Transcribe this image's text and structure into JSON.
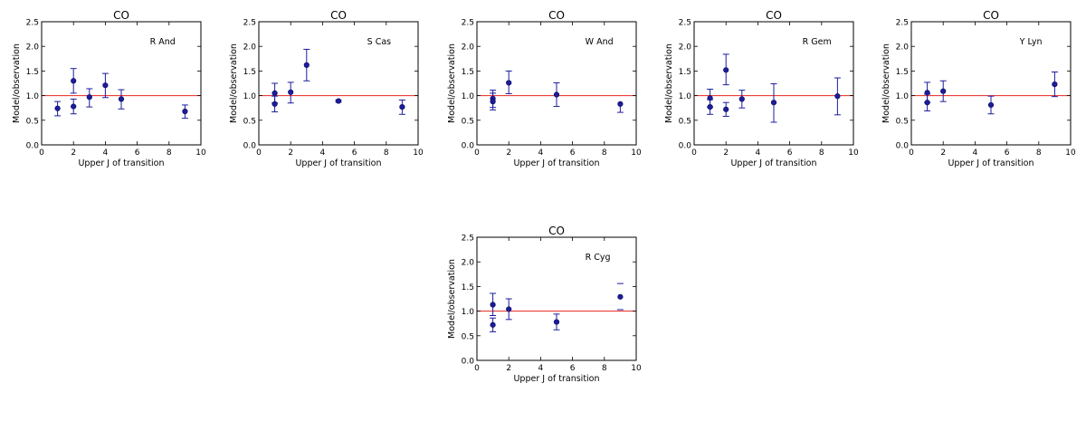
{
  "figure": {
    "colors": {
      "marker": "#1c1c9c",
      "errorbar": "#1c1c9c",
      "reference_line": "#e8261e",
      "axes": "#000000"
    }
  },
  "chart_data": [
    {
      "type": "scatter",
      "title": "CO",
      "star": "R And",
      "xlabel": "Upper J of transition",
      "ylabel": "Model/observation",
      "xlim": [
        0,
        10
      ],
      "ylim": [
        0.0,
        2.5
      ],
      "xticks": [
        "0",
        "2",
        "4",
        "6",
        "8",
        "10"
      ],
      "yticks": [
        "0.0",
        "0.5",
        "1.0",
        "1.5",
        "2.0",
        "2.5"
      ],
      "reference_y": 1.0,
      "points": [
        {
          "x": 1,
          "y": 0.74,
          "err_low": 0.15,
          "err_high": 0.14
        },
        {
          "x": 2,
          "y": 1.3,
          "err_low": 0.25,
          "err_high": 0.25
        },
        {
          "x": 2,
          "y": 0.78,
          "err_low": 0.15,
          "err_high": 0.15
        },
        {
          "x": 3,
          "y": 0.97,
          "err_low": 0.2,
          "err_high": 0.17
        },
        {
          "x": 4,
          "y": 1.21,
          "err_low": 0.25,
          "err_high": 0.24
        },
        {
          "x": 5,
          "y": 0.93,
          "err_low": 0.2,
          "err_high": 0.19
        },
        {
          "x": 9,
          "y": 0.68,
          "err_low": 0.14,
          "err_high": 0.13
        }
      ]
    },
    {
      "type": "scatter",
      "title": "CO",
      "star": "S Cas",
      "xlabel": "Upper J of transition",
      "ylabel": "Model/observation",
      "xlim": [
        0,
        10
      ],
      "ylim": [
        0.0,
        2.5
      ],
      "xticks": [
        "0",
        "2",
        "4",
        "6",
        "8",
        "10"
      ],
      "yticks": [
        "0.0",
        "0.5",
        "1.0",
        "1.5",
        "2.0",
        "2.5"
      ],
      "reference_y": 1.0,
      "points": [
        {
          "x": 1,
          "y": 1.05,
          "err_low": 0.2,
          "err_high": 0.2
        },
        {
          "x": 1,
          "y": 0.83,
          "err_low": 0.16,
          "err_high": 0.16
        },
        {
          "x": 2,
          "y": 1.07,
          "err_low": 0.22,
          "err_high": 0.2
        },
        {
          "x": 3,
          "y": 1.62,
          "err_low": 0.32,
          "err_high": 0.32
        },
        {
          "x": 5,
          "y": 0.89,
          "err_low": 0.02,
          "err_high": 0.02
        },
        {
          "x": 9,
          "y": 0.77,
          "err_low": 0.15,
          "err_high": 0.14
        }
      ]
    },
    {
      "type": "scatter",
      "title": "CO",
      "star": "W And",
      "xlabel": "Upper J of transition",
      "ylabel": "Model/observation",
      "xlim": [
        0,
        10
      ],
      "ylim": [
        0.0,
        2.5
      ],
      "xticks": [
        "0",
        "2",
        "4",
        "6",
        "8",
        "10"
      ],
      "yticks": [
        "0.0",
        "0.5",
        "1.0",
        "1.5",
        "2.0",
        "2.5"
      ],
      "reference_y": 1.0,
      "points": [
        {
          "x": 1,
          "y": 0.94,
          "err_low": 0.18,
          "err_high": 0.17
        },
        {
          "x": 1,
          "y": 0.88,
          "err_low": 0.17,
          "err_high": 0.17
        },
        {
          "x": 2,
          "y": 1.26,
          "err_low": 0.22,
          "err_high": 0.24
        },
        {
          "x": 5,
          "y": 1.02,
          "err_low": 0.24,
          "err_high": 0.24
        },
        {
          "x": 9,
          "y": 0.83,
          "err_low": 0.17,
          "err_high": 0.0
        }
      ]
    },
    {
      "type": "scatter",
      "title": "CO",
      "star": "R Gem",
      "xlabel": "Upper J of transition",
      "ylabel": "Model/observation",
      "xlim": [
        0,
        10
      ],
      "ylim": [
        0.0,
        2.5
      ],
      "xticks": [
        "0",
        "2",
        "4",
        "6",
        "8",
        "10"
      ],
      "yticks": [
        "0.0",
        "0.5",
        "1.0",
        "1.5",
        "2.0",
        "2.5"
      ],
      "reference_y": 1.0,
      "points": [
        {
          "x": 1,
          "y": 0.95,
          "err_low": 0.18,
          "err_high": 0.18
        },
        {
          "x": 1,
          "y": 0.77,
          "err_low": 0.15,
          "err_high": 0.15
        },
        {
          "x": 2,
          "y": 1.52,
          "err_low": 0.3,
          "err_high": 0.32
        },
        {
          "x": 2,
          "y": 0.72,
          "err_low": 0.14,
          "err_high": 0.14
        },
        {
          "x": 3,
          "y": 0.93,
          "err_low": 0.18,
          "err_high": 0.18
        },
        {
          "x": 5,
          "y": 0.86,
          "err_low": 0.4,
          "err_high": 0.38
        },
        {
          "x": 9,
          "y": 0.99,
          "err_low": 0.38,
          "err_high": 0.37
        }
      ]
    },
    {
      "type": "scatter",
      "title": "CO",
      "star": "Y Lyn",
      "xlabel": "Upper J of transition",
      "ylabel": "Model/observation",
      "xlim": [
        0,
        10
      ],
      "ylim": [
        0.0,
        2.5
      ],
      "xticks": [
        "0",
        "2",
        "4",
        "6",
        "8",
        "10"
      ],
      "yticks": [
        "0.0",
        "0.5",
        "1.0",
        "1.5",
        "2.0",
        "2.5"
      ],
      "reference_y": 1.0,
      "points": [
        {
          "x": 1,
          "y": 1.06,
          "err_low": 0.2,
          "err_high": 0.21
        },
        {
          "x": 1,
          "y": 0.86,
          "err_low": 0.17,
          "err_high": 0.17
        },
        {
          "x": 2,
          "y": 1.09,
          "err_low": 0.21,
          "err_high": 0.21
        },
        {
          "x": 5,
          "y": 0.81,
          "err_low": 0.18,
          "err_high": 0.18
        },
        {
          "x": 9,
          "y": 1.23,
          "err_low": 0.25,
          "err_high": 0.25
        }
      ]
    },
    {
      "type": "scatter",
      "title": "CO",
      "star": "R Cyg",
      "xlabel": "Upper J of transition",
      "ylabel": "Model/observation",
      "xlim": [
        0,
        10
      ],
      "ylim": [
        0.0,
        2.5
      ],
      "xticks": [
        "0",
        "2",
        "4",
        "6",
        "8",
        "10"
      ],
      "yticks": [
        "0.0",
        "0.5",
        "1.0",
        "1.5",
        "2.0",
        "2.5"
      ],
      "reference_y": 1.0,
      "points": [
        {
          "x": 1,
          "y": 1.13,
          "err_low": 0.22,
          "err_high": 0.23
        },
        {
          "x": 1,
          "y": 0.72,
          "err_low": 0.14,
          "err_high": 0.14
        },
        {
          "x": 2,
          "y": 1.04,
          "err_low": 0.21,
          "err_high": 0.21
        },
        {
          "x": 5,
          "y": 0.78,
          "err_low": 0.16,
          "err_high": 0.16
        },
        {
          "x": 9,
          "y": 1.29,
          "err_low": 0.26,
          "err_high": 0.27,
          "bar_hidden": true
        }
      ]
    }
  ]
}
